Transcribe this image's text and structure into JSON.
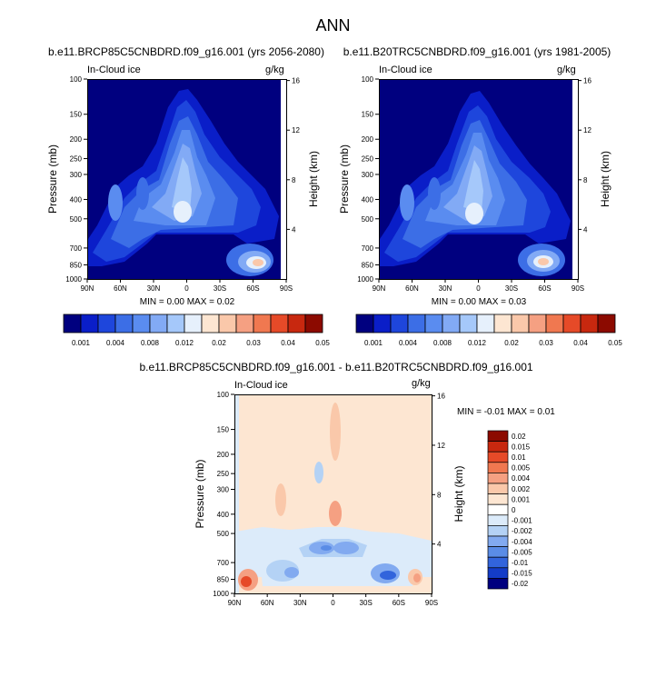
{
  "page_title": "ANN",
  "panels": [
    {
      "title": "b.e11.BRCP85C5CNBDRD.f09_g16.001 (yrs 2056-2080)",
      "left_label": "In-Cloud ice",
      "right_label": "g/kg",
      "stats": "MIN =  0.00  MAX =  0.02"
    },
    {
      "title": "b.e11.B20TRC5CNBDRD.f09_g16.001 (yrs 1981-2005)",
      "left_label": "In-Cloud ice",
      "right_label": "g/kg",
      "stats": "MIN =  0.00  MAX =  0.03"
    },
    {
      "title": "b.e11.BRCP85C5CNBDRD.f09_g16.001 - b.e11.B20TRC5CNBDRD.f09_g16.001",
      "left_label": "In-Cloud ice",
      "right_label": "g/kg",
      "stats": "MIN =  -0.01  MAX =  0.01"
    }
  ],
  "chart_data": [
    {
      "type": "heatmap",
      "xlabel": "",
      "ylabel": "Pressure (mb)",
      "y2label": "Height (km)",
      "x_ticks": [
        "90N",
        "60N",
        "30N",
        "0",
        "30S",
        "60S",
        "90S"
      ],
      "y_ticks": [
        100,
        150,
        200,
        250,
        300,
        400,
        500,
        700,
        850,
        1000
      ],
      "y2_ticks": [
        16,
        12,
        8,
        4
      ],
      "y_scale": "log",
      "ylim": [
        1000,
        100
      ]
    },
    {
      "type": "heatmap",
      "xlabel": "",
      "ylabel": "Pressure (mb)",
      "y2label": "Height (km)",
      "x_ticks": [
        "90N",
        "60N",
        "30N",
        "0",
        "30S",
        "60S",
        "90S"
      ],
      "y_ticks": [
        100,
        150,
        200,
        250,
        300,
        400,
        500,
        700,
        850,
        1000
      ],
      "y2_ticks": [
        16,
        12,
        8,
        4
      ],
      "y_scale": "log",
      "ylim": [
        1000,
        100
      ]
    },
    {
      "type": "heatmap",
      "xlabel": "",
      "ylabel": "Pressure (mb)",
      "y2label": "Height (km)",
      "x_ticks": [
        "90N",
        "60N",
        "30N",
        "0",
        "30S",
        "60S",
        "90S"
      ],
      "y_ticks": [
        100,
        150,
        200,
        250,
        300,
        400,
        500,
        700,
        850,
        1000
      ],
      "y2_ticks": [
        16,
        12,
        8,
        4
      ],
      "y_scale": "log",
      "ylim": [
        1000,
        100
      ]
    }
  ],
  "colorbar_abs": {
    "labels": [
      "0.001",
      "0.004",
      "0.008",
      "0.012",
      "0.02",
      "0.03",
      "0.04",
      "0.05"
    ],
    "colors": [
      "#00007f",
      "#0a1ec8",
      "#1e46dc",
      "#3c6ee6",
      "#5a8cf0",
      "#82aaf5",
      "#a5c8fa",
      "#e6f0fc",
      "#fde6d2",
      "#fac8aa",
      "#f5a082",
      "#f07850",
      "#e64a28",
      "#c8280f",
      "#8c0a00"
    ]
  },
  "colorbar_diff": {
    "labels": [
      "0.02",
      "0.015",
      "0.01",
      "0.005",
      "0.004",
      "0.002",
      "0.001",
      "0",
      "-0.001",
      "-0.002",
      "-0.004",
      "-0.005",
      "-0.01",
      "-0.015",
      "-0.02"
    ],
    "colors": [
      "#8c0a00",
      "#c8280f",
      "#e64a28",
      "#f07850",
      "#f5a082",
      "#fac8aa",
      "#fde6d2",
      "#ffffff",
      "#dcebfa",
      "#b4d2f5",
      "#82aaf0",
      "#5a8ce6",
      "#3264dc",
      "#143cc8",
      "#00007f"
    ]
  }
}
